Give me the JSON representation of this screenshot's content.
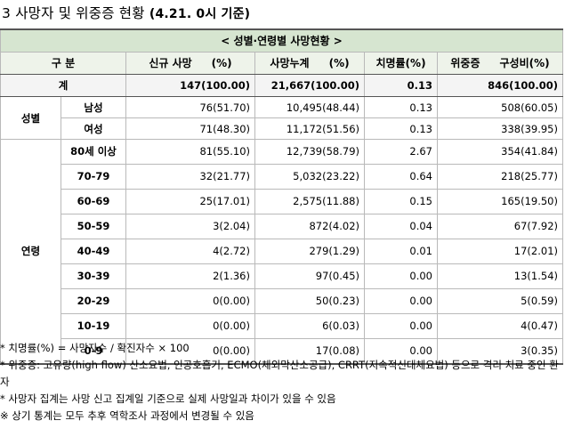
{
  "title": {
    "number": "3",
    "main": "사망자 및 위중증 현황",
    "date": "(4.21. 0시 기준)"
  },
  "table": {
    "caption": "< 성별·연령별 사망현황 >",
    "headers": {
      "category": "구 분",
      "new_deaths": "신규 사망",
      "new_deaths_pct": "(%)",
      "cum_deaths": "사망누계",
      "cum_deaths_pct": "(%)",
      "fatality": "치명률(%)",
      "severe": "위중증",
      "severe_ratio": "구성비(%)"
    },
    "total": {
      "label": "계",
      "new": "147(100.00)",
      "cum": "21,667(100.00)",
      "fatality": "0.13",
      "severe": "846(100.00)"
    },
    "sex_group": "성별",
    "sex_rows": [
      {
        "label": "남성",
        "new": "76(51.70)",
        "cum": "10,495(48.44)",
        "fatality": "0.13",
        "severe": "508(60.05)"
      },
      {
        "label": "여성",
        "new": "71(48.30)",
        "cum": "11,172(51.56)",
        "fatality": "0.13",
        "severe": "338(39.95)"
      }
    ],
    "age_group": "연령",
    "age_rows": [
      {
        "label": "80세 이상",
        "new": "81(55.10)",
        "cum": "12,739(58.79)",
        "fatality": "2.67",
        "severe": "354(41.84)"
      },
      {
        "label": "70-79",
        "new": "32(21.77)",
        "cum": "5,032(23.22)",
        "fatality": "0.64",
        "severe": "218(25.77)"
      },
      {
        "label": "60-69",
        "new": "25(17.01)",
        "cum": "2,575(11.88)",
        "fatality": "0.15",
        "severe": "165(19.50)"
      },
      {
        "label": "50-59",
        "new": "3(2.04)",
        "cum": "872(4.02)",
        "fatality": "0.04",
        "severe": "67(7.92)"
      },
      {
        "label": "40-49",
        "new": "4(2.72)",
        "cum": "279(1.29)",
        "fatality": "0.01",
        "severe": "17(2.01)"
      },
      {
        "label": "30-39",
        "new": "2(1.36)",
        "cum": "97(0.45)",
        "fatality": "0.00",
        "severe": "13(1.54)"
      },
      {
        "label": "20-29",
        "new": "0(0.00)",
        "cum": "50(0.23)",
        "fatality": "0.00",
        "severe": "5(0.59)"
      },
      {
        "label": "10-19",
        "new": "0(0.00)",
        "cum": "6(0.03)",
        "fatality": "0.00",
        "severe": "4(0.47)"
      },
      {
        "label": "0-9",
        "new": "0(0.00)",
        "cum": "17(0.08)",
        "fatality": "0.00",
        "severe": "3(0.35)"
      }
    ]
  },
  "notes": [
    "* 치명률(%) = 사망자수 / 확진자수 × 100",
    "* 위중증: 고유량(high flow) 산소요법, 인공호흡기, ECMO(체외막산소공급), CRRT(지속적신대체요법) 등으로 격리 치료 중인 환자",
    "* 사망자 집계는 사망 신고 집계일 기준으로 실제 사망일과 차이가 있을 수 있음",
    "※ 상기 통계는 모두 추후 역학조사 과정에서 변경될 수 있음"
  ]
}
